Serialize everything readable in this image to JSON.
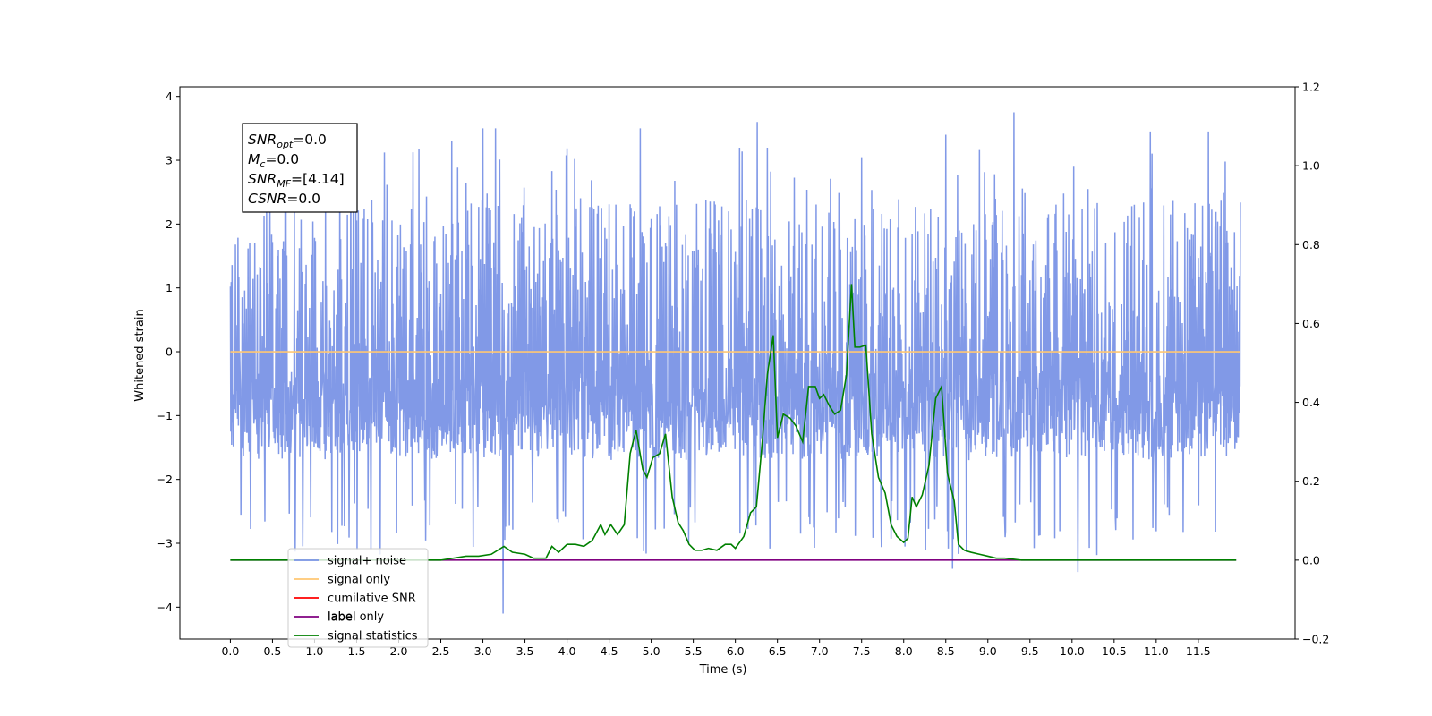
{
  "chart_data": {
    "type": "line",
    "xlabel": "Time (s)",
    "ylabel": "Whitened strain",
    "xlim": [
      -0.6,
      12.65
    ],
    "ylim": [
      -4.5,
      4.15
    ],
    "y2lim": [
      -0.2,
      1.2
    ],
    "x_ticks": [
      "0.0",
      "0.5",
      "1.0",
      "1.5",
      "2.0",
      "2.5",
      "3.0",
      "3.5",
      "4.0",
      "4.5",
      "5.0",
      "5.5",
      "6.0",
      "6.5",
      "7.0",
      "7.5",
      "8.0",
      "8.5",
      "9.0",
      "9.5",
      "10.0",
      "10.5",
      "11.0",
      "11.5"
    ],
    "y_ticks": [
      "4",
      "3",
      "2",
      "1",
      "0",
      "-1",
      "-2",
      "-3",
      "-4"
    ],
    "y2_ticks": [
      "1.2",
      "1.0",
      "0.8",
      "0.6",
      "0.4",
      "0.2",
      "0.0",
      "-0.2"
    ],
    "annotation": {
      "lines": [
        {
          "main": "SNR",
          "sub": "opt",
          "value": "=0.0"
        },
        {
          "main": "M",
          "sub": "c",
          "value": "=0.0"
        },
        {
          "main": "SNR",
          "sub": "MF",
          "value": "=[4.14]"
        },
        {
          "main": "CSNR",
          "sub": "",
          "value": "=0.0"
        }
      ]
    },
    "legend": {
      "placement": "lower-left",
      "entries": [
        {
          "label": "signal+ noise",
          "color": "#7a94e6"
        },
        {
          "label": "signal only",
          "color": "#ffc773"
        },
        {
          "label": "cumilative SNR",
          "color": "#ff0000"
        },
        {
          "label": "label",
          "color": "#800080"
        },
        {
          "label": "signal statistics",
          "color": "#008000"
        }
      ],
      "ghost_label": "label only"
    },
    "series": [
      {
        "name": "signal+ noise",
        "axis": "left",
        "color": "#7a94e6",
        "kind": "noise",
        "x_range": [
          0.0,
          12.0
        ],
        "envelope_typical": [
          -1.6,
          2.4
        ],
        "spikes": [
          {
            "x": 3.24,
            "y": -4.1
          },
          {
            "x": 10.07,
            "y": -3.45
          },
          {
            "x": 8.58,
            "y": -3.4
          },
          {
            "x": 9.31,
            "y": 3.75
          },
          {
            "x": 6.26,
            "y": 3.6
          },
          {
            "x": 3.15,
            "y": 3.5
          },
          {
            "x": 3.0,
            "y": 3.5
          },
          {
            "x": 4.87,
            "y": 3.5
          },
          {
            "x": 11.62,
            "y": 3.45
          },
          {
            "x": 2.63,
            "y": 3.3
          },
          {
            "x": 10.93,
            "y": 3.45
          },
          {
            "x": 8.5,
            "y": 3.4
          }
        ]
      },
      {
        "name": "signal only",
        "axis": "left",
        "color": "#ffc773",
        "x": [
          0.0,
          12.0
        ],
        "y": [
          0.0,
          0.0
        ]
      },
      {
        "name": "label",
        "axis": "right",
        "color": "#800080",
        "x": [
          0.0,
          11.95
        ],
        "y": [
          0.0,
          0.0
        ]
      },
      {
        "name": "signal statistics",
        "axis": "right",
        "color": "#008000",
        "x": [
          0.0,
          0.5,
          1.0,
          1.5,
          2.0,
          2.5,
          2.8,
          2.95,
          3.1,
          3.25,
          3.35,
          3.5,
          3.6,
          3.75,
          3.82,
          3.9,
          4.0,
          4.1,
          4.2,
          4.3,
          4.4,
          4.45,
          4.52,
          4.6,
          4.68,
          4.75,
          4.82,
          4.9,
          4.95,
          5.02,
          5.1,
          5.17,
          5.25,
          5.32,
          5.38,
          5.45,
          5.52,
          5.6,
          5.68,
          5.78,
          5.88,
          5.95,
          6.0,
          6.1,
          6.18,
          6.25,
          6.32,
          6.38,
          6.45,
          6.5,
          6.57,
          6.65,
          6.72,
          6.8,
          6.87,
          6.95,
          7.0,
          7.05,
          7.12,
          7.18,
          7.25,
          7.32,
          7.38,
          7.42,
          7.48,
          7.55,
          7.62,
          7.7,
          7.78,
          7.85,
          7.92,
          8.0,
          8.05,
          8.1,
          8.15,
          8.22,
          8.3,
          8.38,
          8.45,
          8.52,
          8.6,
          8.65,
          8.72,
          8.8,
          8.9,
          9.0,
          9.1,
          9.2,
          9.4,
          9.6,
          9.8,
          10.0,
          10.5,
          11.0,
          11.5,
          11.95
        ],
        "y": [
          0.0,
          0.0,
          0.0,
          0.0,
          0.0,
          0.0,
          0.01,
          0.01,
          0.015,
          0.035,
          0.02,
          0.015,
          0.005,
          0.005,
          0.035,
          0.02,
          0.04,
          0.04,
          0.035,
          0.05,
          0.09,
          0.065,
          0.09,
          0.065,
          0.09,
          0.27,
          0.33,
          0.23,
          0.21,
          0.26,
          0.27,
          0.32,
          0.16,
          0.095,
          0.075,
          0.04,
          0.025,
          0.025,
          0.03,
          0.025,
          0.04,
          0.04,
          0.03,
          0.06,
          0.12,
          0.135,
          0.3,
          0.47,
          0.57,
          0.31,
          0.37,
          0.36,
          0.34,
          0.3,
          0.44,
          0.44,
          0.41,
          0.42,
          0.39,
          0.37,
          0.38,
          0.47,
          0.7,
          0.54,
          0.54,
          0.545,
          0.32,
          0.21,
          0.17,
          0.09,
          0.06,
          0.045,
          0.055,
          0.16,
          0.135,
          0.165,
          0.24,
          0.41,
          0.44,
          0.22,
          0.15,
          0.04,
          0.025,
          0.02,
          0.015,
          0.01,
          0.005,
          0.005,
          0.0,
          0.0,
          0.0,
          0.0,
          0.0,
          0.0,
          0.0,
          0.0
        ]
      },
      {
        "name": "cumilative SNR",
        "axis": "right",
        "color": "#ff0000",
        "x": [],
        "y": []
      }
    ]
  }
}
